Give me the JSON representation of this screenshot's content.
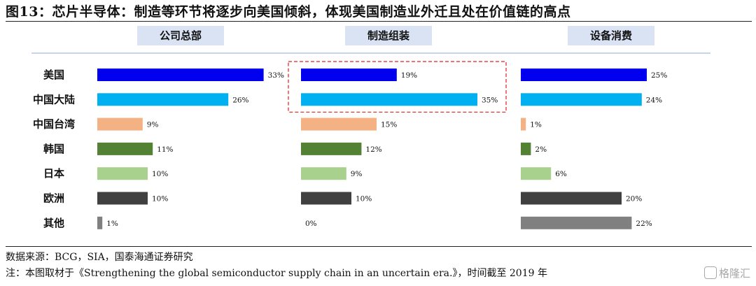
{
  "figure": {
    "title": "图13：芯片半导体：制造等环节将逐步向美国倾斜，体现美国制造业外迁且处在价值链的高点",
    "source": "数据来源：BCG，SIA，国泰海通证券研究",
    "note": "注：本图取材于《Strengthening the global semiconductor supply chain in an uncertain era.》，时间截至 2019 年",
    "watermark": "格隆汇"
  },
  "chart_data": {
    "type": "bar",
    "orientation": "horizontal",
    "categories": [
      "美国",
      "中国大陆",
      "中国台湾",
      "韩国",
      "日本",
      "欧洲",
      "其他"
    ],
    "category_colors": [
      "#0000ee",
      "#00b0f0",
      "#f4b183",
      "#548235",
      "#a9d18e",
      "#404040",
      "#808080"
    ],
    "panels": [
      {
        "header": "公司总部",
        "values": [
          33,
          26,
          9,
          11,
          10,
          10,
          1
        ],
        "highlight_rows": []
      },
      {
        "header": "制造组装",
        "values": [
          19,
          35,
          15,
          12,
          9,
          10,
          0
        ],
        "highlight_rows": [
          0,
          1
        ]
      },
      {
        "header": "设备消费",
        "values": [
          25,
          24,
          1,
          2,
          6,
          20,
          22
        ],
        "highlight_rows": []
      }
    ],
    "value_suffix": "%",
    "header_bg": "#dae3f3",
    "highlight_color": "#e02020"
  }
}
